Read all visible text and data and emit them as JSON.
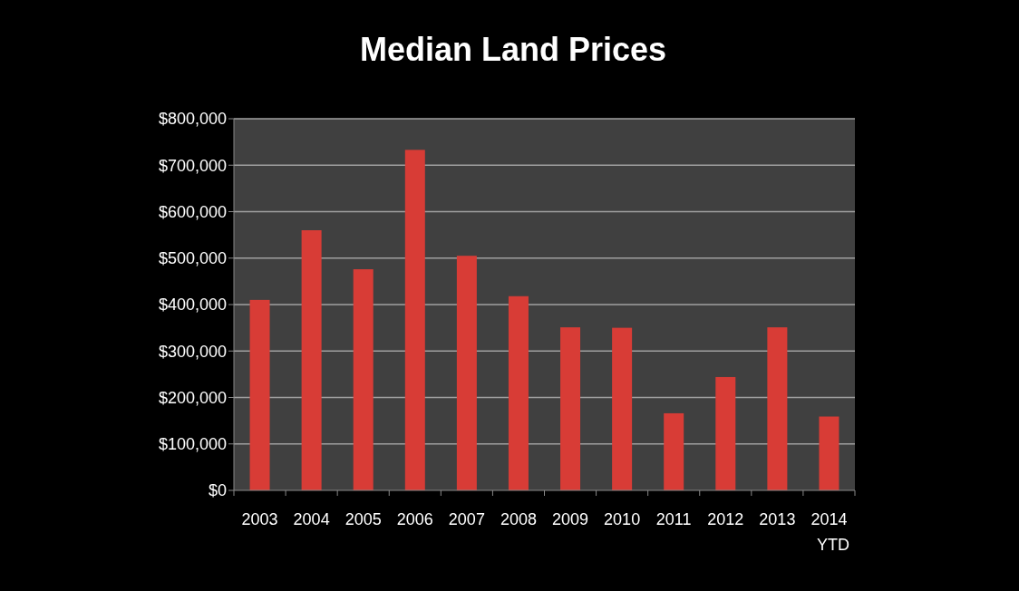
{
  "chart_data": {
    "type": "bar",
    "title": "Median Land Prices",
    "categories": [
      "2003",
      "2004",
      "2005",
      "2006",
      "2007",
      "2008",
      "2009",
      "2010",
      "2011",
      "2012",
      "2013",
      "2014 YTD"
    ],
    "values": [
      410000,
      560000,
      476000,
      733000,
      505000,
      418000,
      351000,
      350000,
      166000,
      244000,
      351000,
      159000
    ],
    "color": "#d83c36",
    "ylim": [
      0,
      800000
    ],
    "yticks": [
      {
        "value": 0,
        "label": "$0"
      },
      {
        "value": 100000,
        "label": "$100,000"
      },
      {
        "value": 200000,
        "label": "$200,000"
      },
      {
        "value": 300000,
        "label": "$300,000"
      },
      {
        "value": 400000,
        "label": "$400,000"
      },
      {
        "value": 500000,
        "label": "$500,000"
      },
      {
        "value": 600000,
        "label": "$600,000"
      },
      {
        "value": 700000,
        "label": "$700,000"
      },
      {
        "value": 800000,
        "label": "$800,000"
      }
    ],
    "grid": "y"
  }
}
